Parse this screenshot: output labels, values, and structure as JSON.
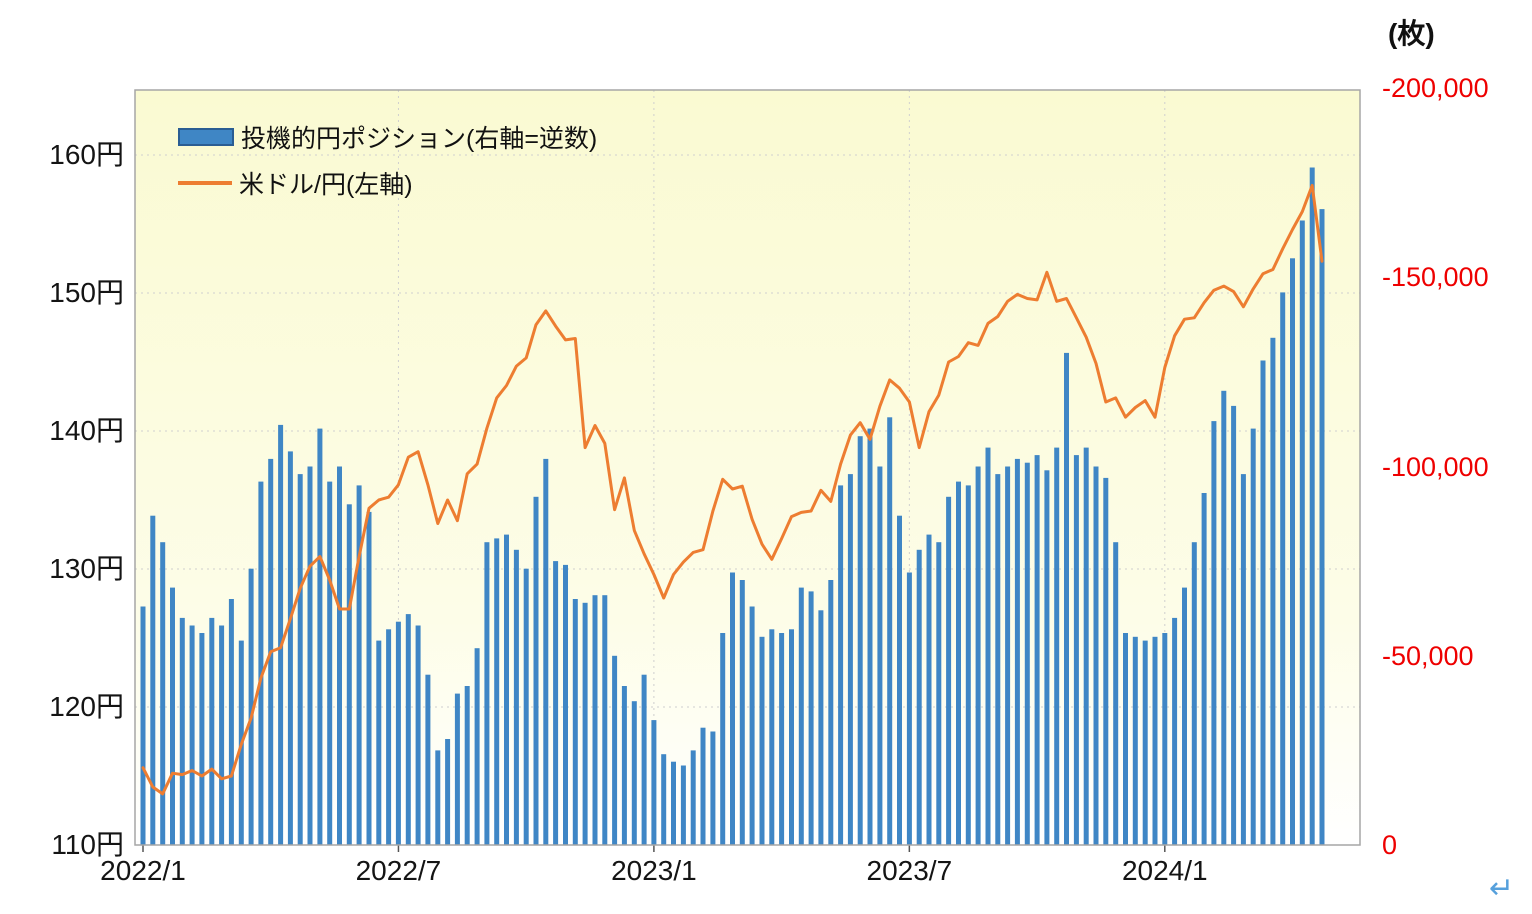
{
  "page": {
    "corner_arrow": "↵"
  },
  "chart_data": {
    "type": "combo",
    "frequency": "weekly",
    "legend_position": "top-left-inside",
    "plot": {
      "bg_gradient_top": "#FAFAD2",
      "bg_gradient_mid": "#FDFDE8",
      "bg_gradient_bottom": "#FFFFFF",
      "grid_color": "#CFCFCF",
      "border_color": "#A6A6A6",
      "tick_color": "#555555"
    },
    "x": {
      "n_points": 121,
      "ticks": [
        {
          "label": "2022/1",
          "week": 0
        },
        {
          "label": "2022/7",
          "week": 26
        },
        {
          "label": "2023/1",
          "week": 52
        },
        {
          "label": "2023/7",
          "week": 78
        },
        {
          "label": "2024/1",
          "week": 104
        }
      ]
    },
    "left_axis": {
      "color": "#141414",
      "min": 110,
      "max": 164.7,
      "ticks": [
        {
          "label": "110円",
          "value": 110
        },
        {
          "label": "120円",
          "value": 120
        },
        {
          "label": "130円",
          "value": 130
        },
        {
          "label": "140円",
          "value": 140
        },
        {
          "label": "150円",
          "value": 150
        },
        {
          "label": "160円",
          "value": 160
        }
      ]
    },
    "right_axis": {
      "unit": "(枚)",
      "color": "#EE0000",
      "min": 0,
      "max": -200000,
      "inverted": true,
      "ticks": [
        {
          "label": "0",
          "value": 0
        },
        {
          "label": "-50,000",
          "value": -50000
        },
        {
          "label": "-100,000",
          "value": -100000
        },
        {
          "label": "-150,000",
          "value": -150000
        },
        {
          "label": "-200,000",
          "value": -200000
        }
      ]
    },
    "series": [
      {
        "name": "投機的円ポジション(右軸=逆数)",
        "type": "bar",
        "axis": "right",
        "color": "#3F86C5",
        "values": [
          -63000,
          -87000,
          -80000,
          -68000,
          -60000,
          -58000,
          -56000,
          -60000,
          -58000,
          -65000,
          -54000,
          -73000,
          -96000,
          -102000,
          -111000,
          -104000,
          -98000,
          -100000,
          -110000,
          -96000,
          -100000,
          -90000,
          -95000,
          -88000,
          -54000,
          -57000,
          -59000,
          -61000,
          -58000,
          -45000,
          -25000,
          -28000,
          -40000,
          -42000,
          -52000,
          -80000,
          -81000,
          -82000,
          -78000,
          -73000,
          -92000,
          -102000,
          -75000,
          -74000,
          -65000,
          -64000,
          -66000,
          -66000,
          -50000,
          -42000,
          -38000,
          -45000,
          -33000,
          -24000,
          -22000,
          -21000,
          -25000,
          -31000,
          -30000,
          -56000,
          -72000,
          -70000,
          -63000,
          -55000,
          -57000,
          -56000,
          -57000,
          -68000,
          -67000,
          -62000,
          -70000,
          -95000,
          -98000,
          -108000,
          -110000,
          -100000,
          -113000,
          -87000,
          -72000,
          -78000,
          -82000,
          -80000,
          -92000,
          -96000,
          -95000,
          -100000,
          -105000,
          -98000,
          -100000,
          -102000,
          -101000,
          -103000,
          -99000,
          -105000,
          -130000,
          -103000,
          -105000,
          -100000,
          -97000,
          -80000,
          -56000,
          -55000,
          -54000,
          -55000,
          -56000,
          -60000,
          -68000,
          -80000,
          -93000,
          -112000,
          -120000,
          -116000,
          -98000,
          -110000,
          -128000,
          -134000,
          -146000,
          -155000,
          -165000,
          -179000,
          -168000
        ]
      },
      {
        "name": "米ドル/円(左軸)",
        "type": "line",
        "axis": "left",
        "color": "#ED7D31",
        "values": [
          115.6,
          114.2,
          113.7,
          115.2,
          115.1,
          115.4,
          115.0,
          115.5,
          114.8,
          115.0,
          117.3,
          119.2,
          122.1,
          124.0,
          124.3,
          126.4,
          128.6,
          130.2,
          130.9,
          129.2,
          127.1,
          127.1,
          130.9,
          134.4,
          135.0,
          135.2,
          136.1,
          138.1,
          138.5,
          136.1,
          133.3,
          135.0,
          133.5,
          136.9,
          137.6,
          140.2,
          142.4,
          143.3,
          144.7,
          145.3,
          147.7,
          148.7,
          147.6,
          146.6,
          146.7,
          138.8,
          140.4,
          139.1,
          134.3,
          136.6,
          132.8,
          131.1,
          129.6,
          127.9,
          129.6,
          130.5,
          131.2,
          131.4,
          134.2,
          136.5,
          135.8,
          136.0,
          133.6,
          131.8,
          130.7,
          132.2,
          133.8,
          134.1,
          134.2,
          135.7,
          134.9,
          137.6,
          139.7,
          140.6,
          139.4,
          141.8,
          143.7,
          143.1,
          142.1,
          138.8,
          141.4,
          142.6,
          145.0,
          145.4,
          146.4,
          146.2,
          147.8,
          148.3,
          149.4,
          149.9,
          149.6,
          149.5,
          151.5,
          149.4,
          149.6,
          148.2,
          146.8,
          144.9,
          142.1,
          142.4,
          141.0,
          141.7,
          142.2,
          141.0,
          144.6,
          146.9,
          148.1,
          148.2,
          149.3,
          150.2,
          150.5,
          150.1,
          149.0,
          150.3,
          151.4,
          151.7,
          153.2,
          154.6,
          155.9,
          157.8,
          152.3
        ]
      }
    ]
  }
}
